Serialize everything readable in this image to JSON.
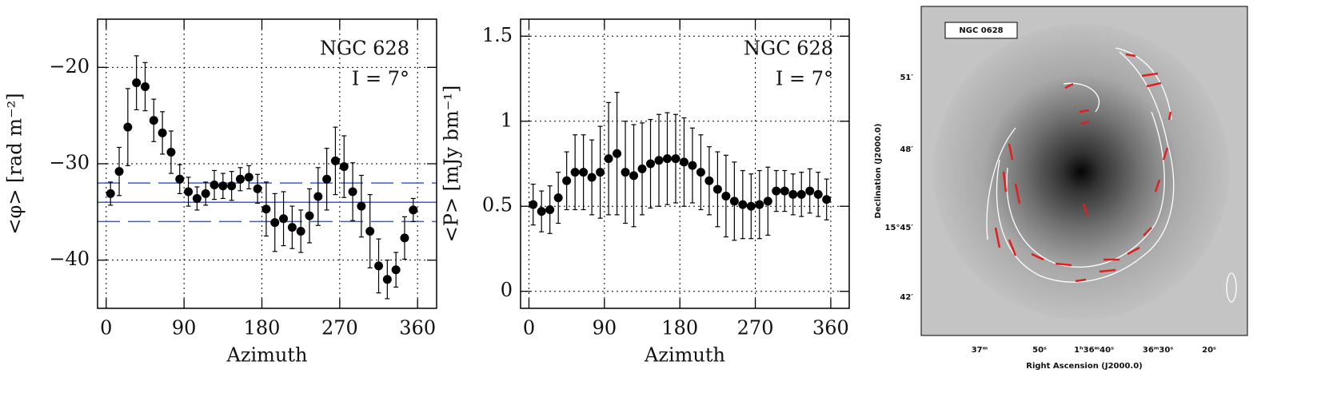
{
  "chart_data": [
    {
      "type": "scatter",
      "xlabel": "Azimuth",
      "ylabel": "<φ> [rad m⁻²]",
      "annotations": [
        "NGC 628",
        "I = 7°"
      ],
      "x": [
        5,
        15,
        25,
        35,
        45,
        55,
        65,
        75,
        85,
        95,
        105,
        115,
        125,
        135,
        145,
        155,
        165,
        175,
        185,
        195,
        205,
        215,
        225,
        235,
        245,
        255,
        265,
        275,
        285,
        295,
        305,
        315,
        325,
        335,
        345,
        355
      ],
      "values": [
        -33.1,
        -30.8,
        -26.2,
        -21.6,
        -22.0,
        -25.5,
        -26.8,
        -28.8,
        -31.6,
        -32.9,
        -33.6,
        -33.1,
        -32.2,
        -32.3,
        -32.3,
        -31.6,
        -31.4,
        -32.6,
        -34.7,
        -36.1,
        -35.7,
        -36.6,
        -37.0,
        -35.4,
        -33.4,
        -31.6,
        -29.7,
        -30.3,
        -32.9,
        -34.4,
        -37.0,
        -40.6,
        -42.0,
        -41.0,
        -37.7,
        -34.8
      ],
      "errors": [
        1.2,
        2.5,
        4,
        2.8,
        2.5,
        2.2,
        2.2,
        2.2,
        1.5,
        1.5,
        1.2,
        1.2,
        1.5,
        1.3,
        1.5,
        1.2,
        1.2,
        1.5,
        2.8,
        3,
        2.8,
        2.2,
        2.2,
        2.8,
        3,
        3.2,
        3.5,
        3.2,
        3,
        3.2,
        3.8,
        2.8,
        2,
        1.8,
        2.2,
        1.2
      ],
      "color": "#000000",
      "hline_color": "#3a5fd0",
      "hlines": [
        {
          "value": -34,
          "style": "solid"
        },
        {
          "value": -32,
          "style": "dashed"
        },
        {
          "value": -36,
          "style": "dashed"
        }
      ],
      "xlim": [
        -10,
        382
      ],
      "ylim": [
        -45,
        -15
      ],
      "xticks": [
        0,
        90,
        180,
        270,
        360
      ],
      "yticks": [
        {
          "value": -40,
          "label": "−40"
        },
        {
          "value": -30,
          "label": "−30"
        },
        {
          "value": -20,
          "label": "−20"
        }
      ],
      "grid": true
    },
    {
      "type": "scatter",
      "xlabel": "Azimuth",
      "ylabel": "<P> [mJy bm⁻¹]",
      "annotations": [
        "NGC 628",
        "I = 7°"
      ],
      "x": [
        5,
        15,
        25,
        35,
        45,
        55,
        65,
        75,
        85,
        95,
        105,
        115,
        125,
        135,
        145,
        155,
        165,
        175,
        185,
        195,
        205,
        215,
        225,
        235,
        245,
        255,
        265,
        275,
        285,
        295,
        305,
        315,
        325,
        335,
        345,
        355
      ],
      "values": [
        0.51,
        0.47,
        0.48,
        0.55,
        0.65,
        0.7,
        0.7,
        0.67,
        0.7,
        0.78,
        0.81,
        0.7,
        0.68,
        0.72,
        0.75,
        0.77,
        0.78,
        0.78,
        0.76,
        0.74,
        0.7,
        0.65,
        0.6,
        0.56,
        0.53,
        0.51,
        0.5,
        0.51,
        0.53,
        0.59,
        0.59,
        0.57,
        0.57,
        0.59,
        0.57,
        0.54
      ],
      "errors": [
        0.12,
        0.12,
        0.14,
        0.15,
        0.17,
        0.22,
        0.22,
        0.22,
        0.27,
        0.33,
        0.36,
        0.3,
        0.3,
        0.27,
        0.26,
        0.27,
        0.27,
        0.26,
        0.26,
        0.22,
        0.22,
        0.2,
        0.22,
        0.24,
        0.23,
        0.2,
        0.19,
        0.2,
        0.2,
        0.12,
        0.12,
        0.12,
        0.13,
        0.13,
        0.13,
        0.12
      ],
      "color": "#000000",
      "xlim": [
        -10,
        382
      ],
      "ylim": [
        -0.1,
        1.6
      ],
      "xticks": [
        0,
        90,
        180,
        270,
        360
      ],
      "yticks": [
        0,
        0.5,
        1,
        1.5
      ],
      "grid": true
    }
  ],
  "image_panel": {
    "label": "NGC 0628",
    "xlabel": "Right Ascension (J2000.0)",
    "ylabel": "Declination (J2000.0)",
    "xticks": [
      "37ᵐ",
      "50ˢ",
      "1ʰ36ᵐ40ˢ",
      "36ᵐ30ˢ",
      "20ˢ"
    ],
    "yticks": [
      "51′",
      "48′",
      "15°45′",
      "42′"
    ]
  }
}
